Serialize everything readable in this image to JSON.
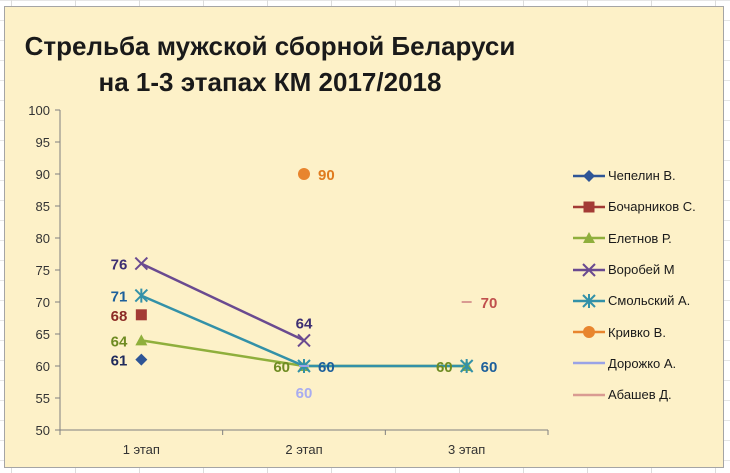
{
  "chart_data": {
    "type": "line",
    "title": "Стрельба мужской сборной Беларуси на 1-3 этапах КМ 2017/2018",
    "title_lines": [
      "Стрельба мужской сборной Беларуси",
      "на 1-3 этапах КМ 2017/2018"
    ],
    "categories": [
      "1 этап",
      "2 этап",
      "3 этап"
    ],
    "ylim": [
      50,
      100
    ],
    "yticks": [
      "50",
      "55",
      "60",
      "65",
      "70",
      "75",
      "80",
      "85",
      "90",
      "95",
      "100"
    ],
    "grid": false,
    "legend_position": "right",
    "series": [
      {
        "name": "Чепелин В.",
        "values": [
          61,
          null,
          null
        ],
        "color": "#2e5596",
        "marker": "diamond"
      },
      {
        "name": "Бочарников С.",
        "values": [
          68,
          null,
          null
        ],
        "color": "#a33b35",
        "marker": "square"
      },
      {
        "name": "Елетнов Р.",
        "values": [
          64,
          60,
          60
        ],
        "color": "#8faf3c",
        "marker": "triangle"
      },
      {
        "name": "Воробей М",
        "values": [
          76,
          64,
          null
        ],
        "color": "#6a4a90",
        "marker": "x"
      },
      {
        "name": "Смольский А.",
        "values": [
          71,
          60,
          60
        ],
        "color": "#3391a8",
        "marker": "star"
      },
      {
        "name": "Кривко В.",
        "values": [
          null,
          90,
          null
        ],
        "color": "#e8852e",
        "marker": "circle"
      },
      {
        "name": "Дорожко А.",
        "values": [
          null,
          60,
          null
        ],
        "color": "#9aa3e6",
        "marker": "dash"
      },
      {
        "name": "Абашев Д.",
        "values": [
          null,
          null,
          70
        ],
        "color": "#d99b92",
        "marker": "dash"
      }
    ],
    "data_labels": [
      {
        "series": 0,
        "point": 0,
        "text": "61",
        "color": "#1f2a5c"
      },
      {
        "series": 1,
        "point": 0,
        "text": "68",
        "color": "#8b2a25"
      },
      {
        "series": 2,
        "point": 0,
        "text": "64",
        "color": "#6e8b22"
      },
      {
        "series": 2,
        "point": 1,
        "text": "60",
        "color": "#6e8b22"
      },
      {
        "series": 2,
        "point": 2,
        "text": "60",
        "color": "#6e8b22"
      },
      {
        "series": 3,
        "point": 0,
        "text": "76",
        "color": "#3d2f72"
      },
      {
        "series": 3,
        "point": 1,
        "text": "64",
        "color": "#3d2f72"
      },
      {
        "series": 4,
        "point": 0,
        "text": "71",
        "color": "#1c5f9b"
      },
      {
        "series": 4,
        "point": 1,
        "text": "60",
        "color": "#1c5f9b"
      },
      {
        "series": 4,
        "point": 2,
        "text": "60",
        "color": "#1c5f9b"
      },
      {
        "series": 5,
        "point": 1,
        "text": "90",
        "color": "#e07b1e"
      },
      {
        "series": 6,
        "point": 1,
        "text": "60",
        "color": "#a8acf0"
      },
      {
        "series": 7,
        "point": 2,
        "text": "70",
        "color": "#c0504d"
      }
    ]
  }
}
